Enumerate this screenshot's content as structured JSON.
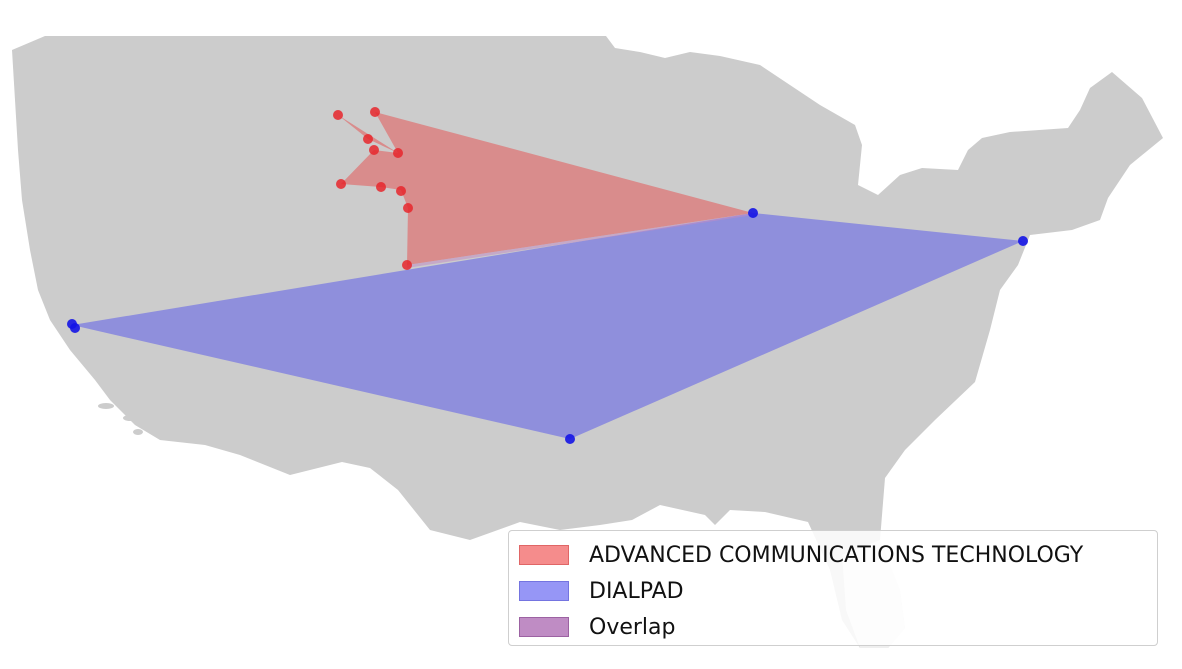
{
  "map": {
    "land_color": "#cccccc",
    "florida_color": "#efefef",
    "background": "#ffffff",
    "areas": [
      {
        "key": "act",
        "label": "ADVANCED COMMUNICATIONS TECHNOLOGY",
        "fill": "#d98c8c",
        "swatch": "#f58c8c",
        "swatch_border": "#e06666",
        "point_color": "#e6262b"
      },
      {
        "key": "dialpad",
        "label": "DIALPAD",
        "fill": "#8f8fdc",
        "swatch": "#9696f6",
        "swatch_border": "#7474e0",
        "point_color": "#1414e6"
      },
      {
        "key": "overlap",
        "label": "Overlap",
        "fill": "#bf8cc4",
        "swatch": "#bf8cc4",
        "swatch_border": "#9c62a2",
        "point_color": ""
      }
    ]
  }
}
